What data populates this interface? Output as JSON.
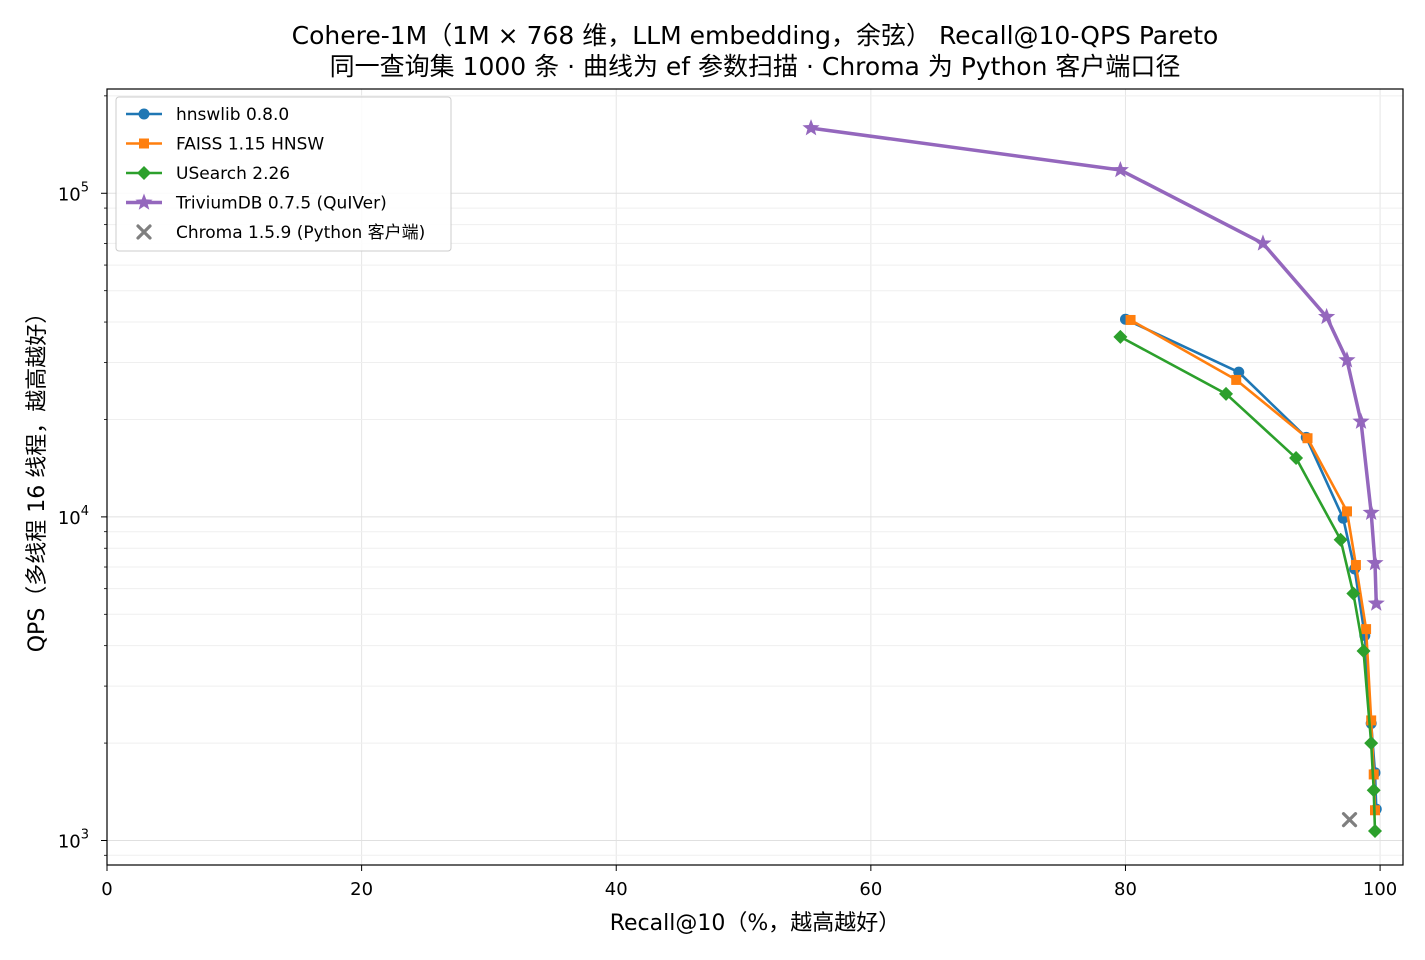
{
  "chart_data": {
    "type": "line",
    "title_line1": "Cohere-1M（1M × 768 维，LLM embedding，余弦） Recall@10-QPS Pareto",
    "title_line2": "同一查询集 1000 条 · 曲线为 ef 参数扫描 · Chroma 为 Python 客户端口径",
    "xlabel": "Recall@10（%，越高越好）",
    "ylabel": "QPS（多线程 16 线程，越高越好）",
    "x_ticks": [
      "0",
      "20",
      "40",
      "60",
      "80",
      "100"
    ],
    "y_ticks": [
      {
        "value": 1000,
        "base": "10",
        "exp": "3"
      },
      {
        "value": 10000,
        "base": "10",
        "exp": "4"
      },
      {
        "value": 100000,
        "base": "10",
        "exp": "5"
      }
    ],
    "xlim": [
      0,
      101.8
    ],
    "ylim": [
      840,
      210000
    ],
    "y_scale": "log",
    "grid": true,
    "legend_position": "upper-left",
    "series": [
      {
        "name": "hnswlib 0.8.0",
        "color": "#1f77b4",
        "marker": "circle",
        "x": [
          80.0,
          88.9,
          94.2,
          97.1,
          98.0,
          98.8,
          99.3,
          99.6,
          99.7
        ],
        "y": [
          40800,
          28000,
          17600,
          9900,
          6900,
          4300,
          2300,
          1620,
          1250
        ]
      },
      {
        "name": "FAISS 1.15 HNSW",
        "color": "#ff7f0e",
        "marker": "square",
        "x": [
          80.4,
          88.7,
          94.3,
          97.4,
          98.1,
          98.9,
          99.3,
          99.5,
          99.6
        ],
        "y": [
          40600,
          26500,
          17500,
          10400,
          7100,
          4500,
          2350,
          1600,
          1240
        ]
      },
      {
        "name": "USearch 2.26",
        "color": "#2ca02c",
        "marker": "diamond",
        "x": [
          79.6,
          87.9,
          93.4,
          96.9,
          97.9,
          98.7,
          99.3,
          99.5,
          99.6
        ],
        "y": [
          36000,
          24000,
          15200,
          8500,
          5800,
          3850,
          2000,
          1430,
          1070
        ]
      },
      {
        "name": "TriviumDB 0.7.5 (QuIVer)",
        "color": "#9467bd",
        "marker": "star",
        "x": [
          55.3,
          79.6,
          90.8,
          95.8,
          97.4,
          98.5,
          99.3,
          99.6,
          99.7
        ],
        "y": [
          159000,
          118000,
          70000,
          41500,
          30500,
          19700,
          10300,
          7200,
          5400
        ]
      },
      {
        "name": "Chroma 1.5.9 (Python 客户端)",
        "color": "#7f7f7f",
        "marker": "x",
        "x": [
          97.6
        ],
        "y": [
          1160
        ]
      }
    ]
  }
}
